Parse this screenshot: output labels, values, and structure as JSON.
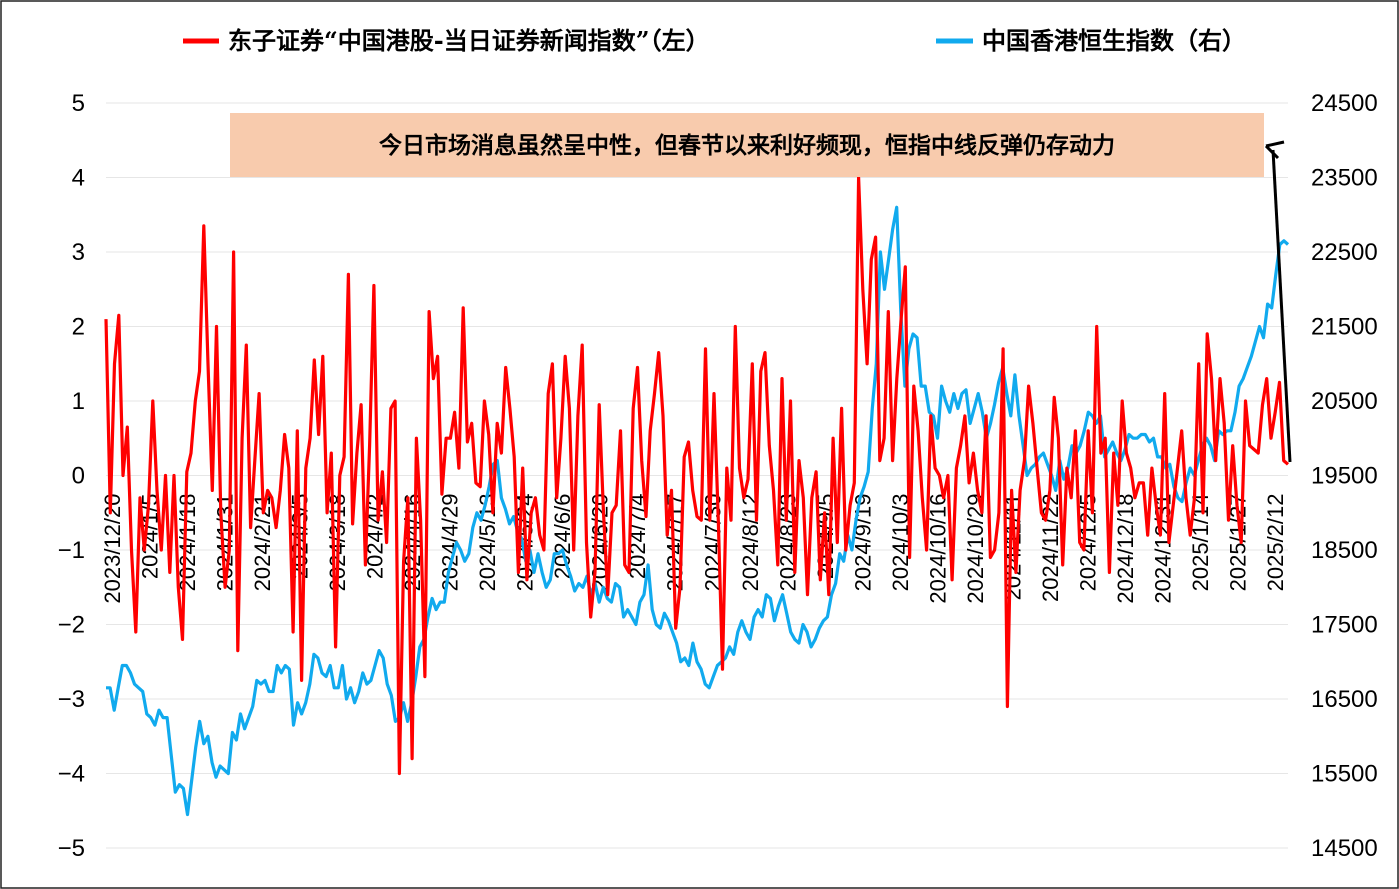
{
  "chart_data": {
    "type": "line",
    "legend": {
      "position": "top",
      "items": [
        {
          "label": "东子证券“中国港股-当日证券新闻指数”（左）",
          "color": "#ff0000"
        },
        {
          "label": "中国香港恒生指数（右）",
          "color": "#11aaee"
        }
      ]
    },
    "annotation": {
      "text": "今日市场消息虽然呈中性，但春节以来利好频现，恒指中线反弹仍存动力",
      "box_color": "#f8cbad",
      "arrow_color": "#000000"
    },
    "y_left": {
      "range": [
        -5,
        5
      ],
      "ticks": [
        "5",
        "4",
        "3",
        "2",
        "1",
        "0",
        "−1",
        "−2",
        "−3",
        "−4",
        "−5"
      ]
    },
    "y_right": {
      "range": [
        14500,
        24500
      ],
      "ticks": [
        "24500",
        "23500",
        "22500",
        "21500",
        "20500",
        "19500",
        "18500",
        "17500",
        "16500",
        "15500",
        "14500"
      ]
    },
    "x": {
      "start": "2023-12-20",
      "end": "2025-02-19",
      "tick_labels": [
        "2023/12/20",
        "2024/1/5",
        "2024/1/18",
        "2024/1/31",
        "2024/2/21",
        "2024/3/5",
        "2024/3/18",
        "2024/4/2",
        "2024/4/16",
        "2024/4/29",
        "2024/5/13",
        "2024/5/24",
        "2024/6/6",
        "2024/6/20",
        "2024/7/4",
        "2024/7/17",
        "2024/7/30",
        "2024/8/12",
        "2024/8/23",
        "2024/9/5",
        "2024/9/19",
        "2024/10/3",
        "2024/10/16",
        "2024/10/29",
        "2024/11/11",
        "2024/11/22",
        "2024/12/5",
        "2024/12/18",
        "2024/12/31",
        "2025/1/14",
        "2025/1/27",
        "2025/2/12"
      ]
    },
    "series": [
      {
        "name": "东子证券“中国港股-当日证券新闻指数”（左）",
        "axis": "left",
        "color": "#ff0000",
        "values": [
          2.1,
          -0.5,
          1.5,
          2.15,
          0,
          0.65,
          -1,
          -2.1,
          -0.3,
          -1,
          -0.4,
          1.0,
          -0.2,
          -1,
          0,
          -1.3,
          0,
          -1.5,
          -2.2,
          0.05,
          0.3,
          1.0,
          1.4,
          3.35,
          1.5,
          -0.2,
          2.0,
          -0.5,
          -1.5,
          -1.0,
          3.0,
          -2.35,
          0.5,
          1.75,
          -0.7,
          0.2,
          1.1,
          -0.5,
          -0.2,
          -0.3,
          -0.7,
          -0.2,
          0.55,
          0.1,
          -2.1,
          0.6,
          -2.75,
          0.1,
          0.5,
          1.55,
          0.55,
          1.6,
          -0.5,
          0.3,
          -2.3,
          0,
          0.25,
          2.7,
          -0.65,
          0.3,
          0.95,
          -1.2,
          0.4,
          2.55,
          -0.6,
          0.05,
          -0.9,
          0.9,
          1.0,
          -4.0,
          -1.15,
          -0.3,
          -3.8,
          0.5,
          -0.6,
          -2.7,
          2.2,
          1.3,
          1.6,
          -0.25,
          0.5,
          0.5,
          0.85,
          0.1,
          2.25,
          0.45,
          0.7,
          -0.1,
          -0.15,
          1.0,
          0.55,
          -0.5,
          0.7,
          0.3,
          1.45,
          0.9,
          0.25,
          -1.3,
          0.1,
          -1.4,
          -0.5,
          -0.3,
          -0.8,
          -1.0,
          1.1,
          1.5,
          -0.3,
          0.5,
          1.6,
          0.9,
          -1.0,
          0.8,
          1.75,
          -0.9,
          -1.9,
          -1.3,
          0.95,
          -0.5,
          -1.6,
          -0.5,
          -0.4,
          0.6,
          -1.2,
          -1.3,
          0.9,
          1.45,
          0.2,
          -0.55,
          0.6,
          1.1,
          1.65,
          0.8,
          -0.8,
          -0.2,
          -2.05,
          -1.5,
          0.25,
          0.45,
          -0.2,
          -0.55,
          -0.6,
          1.7,
          -0.6,
          1.1,
          -0.6,
          -2.6,
          0.1,
          -0.6,
          2.0,
          0.1,
          -0.3,
          -0.05,
          1.5,
          -0.6,
          1.4,
          1.65,
          0.4,
          -0.2,
          -1.2,
          1.3,
          -0.6,
          1.0,
          -1.3,
          0.2,
          -0.3,
          -1.6,
          -0.3,
          0.05,
          -1.4,
          -0.5,
          -1.6,
          0.5,
          -0.9,
          0.9,
          -1.0,
          -0.4,
          -0.1,
          4.0,
          2.5,
          1.5,
          2.9,
          3.2,
          0.2,
          0.5,
          2.2,
          0.2,
          1.3,
          2.1,
          2.8,
          -1.1,
          1.2,
          0.6,
          -0.3,
          -1.0,
          0.8,
          0.1,
          0,
          -0.3,
          0,
          -1.4,
          0.1,
          0.4,
          0.8,
          -0.1,
          0.3,
          -0.2,
          -0.5,
          0.8,
          -1.1,
          -1.0,
          -0.5,
          1.7,
          -3.1,
          -0.2,
          -1.3,
          -0.2,
          0.2,
          1.2,
          0.7,
          0.1,
          -0.5,
          -0.6,
          -0.2,
          1.05,
          0.5,
          -1.2,
          0.1,
          -0.3,
          0.6,
          -0.9,
          -1.0,
          0.6,
          -0.5,
          2.0,
          0.3,
          0.5,
          -1.3,
          0.3,
          -0.4,
          1.0,
          0.3,
          0.1,
          -0.3,
          -0.1,
          -0.1,
          -0.8,
          0.1,
          -0.4,
          -0.8,
          1.1,
          -0.9,
          -0.4,
          0.1,
          0.6,
          -0.3,
          -0.8,
          -0.3,
          1.5,
          -0.5,
          1.9,
          1.3,
          0.2,
          1.3,
          0.7,
          -0.6,
          0.4,
          -0.4,
          -0.9,
          1.0,
          0.4,
          0.35,
          0.3,
          0.95,
          1.3,
          0.5,
          0.85,
          1.25,
          0.2,
          0.15
        ]
      },
      {
        "name": "中国香港恒生指数（右）",
        "axis": "right",
        "color": "#11aaee",
        "values": [
          16650,
          16650,
          16350,
          16650,
          16950,
          16950,
          16850,
          16700,
          16650,
          16600,
          16300,
          16250,
          16150,
          16350,
          16250,
          16250,
          15750,
          15250,
          15350,
          15300,
          14950,
          15400,
          15850,
          16200,
          15900,
          16000,
          15650,
          15450,
          15600,
          15550,
          15500,
          16050,
          15950,
          16300,
          16100,
          16250,
          16400,
          16750,
          16700,
          16750,
          16600,
          16600,
          16950,
          16850,
          16950,
          16900,
          16150,
          16450,
          16300,
          16450,
          16700,
          17100,
          17050,
          16850,
          16800,
          16950,
          16650,
          16650,
          16950,
          16500,
          16650,
          16450,
          16600,
          16850,
          16700,
          16750,
          16950,
          17150,
          17050,
          16700,
          16550,
          16200,
          16250,
          16450,
          16200,
          16450,
          16800,
          17200,
          17300,
          17600,
          17850,
          17700,
          17800,
          17800,
          18200,
          18400,
          18600,
          18500,
          18350,
          18450,
          18800,
          19000,
          18900,
          19100,
          19350,
          19650,
          19700,
          19200,
          19050,
          18850,
          18950,
          18750,
          18650,
          18350,
          18500,
          18200,
          18450,
          18200,
          18000,
          18100,
          18450,
          18450,
          18500,
          18300,
          18150,
          17950,
          18050,
          18000,
          18150,
          17900,
          18050,
          17800,
          18000,
          17850,
          17800,
          18050,
          18000,
          17600,
          17700,
          17600,
          17500,
          17800,
          17900,
          18300,
          17700,
          17500,
          17450,
          17650,
          17550,
          17400,
          17250,
          17000,
          17050,
          16950,
          17250,
          17000,
          16900,
          16700,
          16650,
          16800,
          16950,
          17000,
          17050,
          17200,
          17100,
          17400,
          17550,
          17400,
          17300,
          17600,
          17700,
          17600,
          17900,
          17850,
          17550,
          17750,
          17900,
          17650,
          17400,
          17300,
          17250,
          17500,
          17400,
          17200,
          17300,
          17450,
          17550,
          17600,
          17900,
          18050,
          18450,
          18350,
          18700,
          18500,
          18900,
          19200,
          19350,
          19550,
          20400,
          21000,
          22500,
          22000,
          22400,
          22800,
          23100,
          21700,
          20700,
          21200,
          21400,
          21350,
          20700,
          20700,
          20350,
          20300,
          20000,
          20700,
          20500,
          20350,
          20600,
          20400,
          20600,
          20650,
          20200,
          20400,
          20600,
          20350,
          20000,
          20200,
          20450,
          20750,
          20950,
          20600,
          20300,
          20850,
          20300,
          19900,
          19500,
          19600,
          19650,
          19750,
          19800,
          19650,
          19500,
          19300,
          19700,
          19450,
          19600,
          19900,
          19800,
          19900,
          20100,
          20350,
          20300,
          20200,
          20300,
          19750,
          19850,
          19950,
          19800,
          19700,
          19850,
          20050,
          20000,
          20000,
          20050,
          20050,
          19950,
          20000,
          19750,
          19750,
          19600,
          19650,
          19350,
          19200,
          19150,
          19400,
          19600,
          19500,
          19700,
          19900,
          20000,
          19900,
          19700,
          20100,
          20050,
          20100,
          20100,
          20350,
          20700,
          20800,
          20950,
          21100,
          21300,
          21500,
          21350,
          21800,
          21750,
          22200,
          22600,
          22650,
          22600
        ]
      }
    ]
  }
}
